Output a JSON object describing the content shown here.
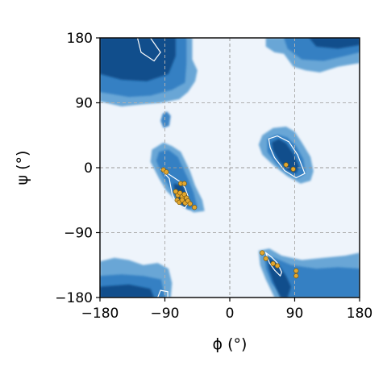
{
  "chart_data": {
    "type": "scatter",
    "xlabel": "ϕ (°)",
    "ylabel": "ψ (°)",
    "xlim": [
      -180,
      180
    ],
    "ylim": [
      -180,
      180
    ],
    "xticks": [
      -180,
      -90,
      0,
      90,
      180
    ],
    "yticks": [
      -180,
      -90,
      0,
      90,
      180
    ],
    "xtick_labels": [
      "−180",
      "−90",
      "0",
      "90",
      "180"
    ],
    "ytick_labels": [
      "−180",
      "−90",
      "0",
      "90",
      "180"
    ],
    "grid": true,
    "reference_lines": {
      "x": [
        -90,
        0,
        90
      ],
      "y": [
        -90,
        0,
        90
      ]
    },
    "background": "density map of dihedral angles (blue filled contours, white inner contour lines)",
    "colors": {
      "background_low": "#eef4fb",
      "density_low": "#5d9fd3",
      "density_mid": "#2f7dc1",
      "density_high": "#0c4a87",
      "contour_line": "#ffffff",
      "points": "#e3a72f",
      "point_edge": "#7a5a10"
    },
    "density_regions": [
      {
        "region": "beta (top-left)",
        "phi_range": [
          -180,
          -45
        ],
        "psi_range": [
          90,
          180
        ]
      },
      {
        "region": "beta (bottom-left, wrapped)",
        "phi_range": [
          -180,
          -80
        ],
        "psi_range": [
          -180,
          -140
        ]
      },
      {
        "region": "alpha-right",
        "phi_range": [
          -110,
          -35
        ],
        "psi_range": [
          -60,
          35
        ]
      },
      {
        "region": "left-handed alpha",
        "phi_range": [
          40,
          115
        ],
        "psi_range": [
          -20,
          50
        ]
      },
      {
        "region": "top-right",
        "phi_range": [
          50,
          180
        ],
        "psi_range": [
          130,
          180
        ]
      },
      {
        "region": "bottom-right",
        "phi_range": [
          40,
          180
        ],
        "psi_range": [
          -180,
          -120
        ]
      }
    ],
    "points": [
      {
        "x": -92,
        "y": -3
      },
      {
        "x": -88,
        "y": -6
      },
      {
        "x": -68,
        "y": -22
      },
      {
        "x": -63,
        "y": -22
      },
      {
        "x": -75,
        "y": -33
      },
      {
        "x": -72,
        "y": -38
      },
      {
        "x": -69,
        "y": -35
      },
      {
        "x": -66,
        "y": -40
      },
      {
        "x": -63,
        "y": -37
      },
      {
        "x": -60,
        "y": -42
      },
      {
        "x": -73,
        "y": -45
      },
      {
        "x": -70,
        "y": -48
      },
      {
        "x": -66,
        "y": -45
      },
      {
        "x": -62,
        "y": -49
      },
      {
        "x": -58,
        "y": -46
      },
      {
        "x": -55,
        "y": -50
      },
      {
        "x": -49,
        "y": -55
      },
      {
        "x": 78,
        "y": 4
      },
      {
        "x": 88,
        "y": -2
      },
      {
        "x": 45,
        "y": -118
      },
      {
        "x": 50,
        "y": -126
      },
      {
        "x": 60,
        "y": -133
      },
      {
        "x": 66,
        "y": -136
      },
      {
        "x": 92,
        "y": -143
      },
      {
        "x": 92,
        "y": -150
      }
    ]
  }
}
